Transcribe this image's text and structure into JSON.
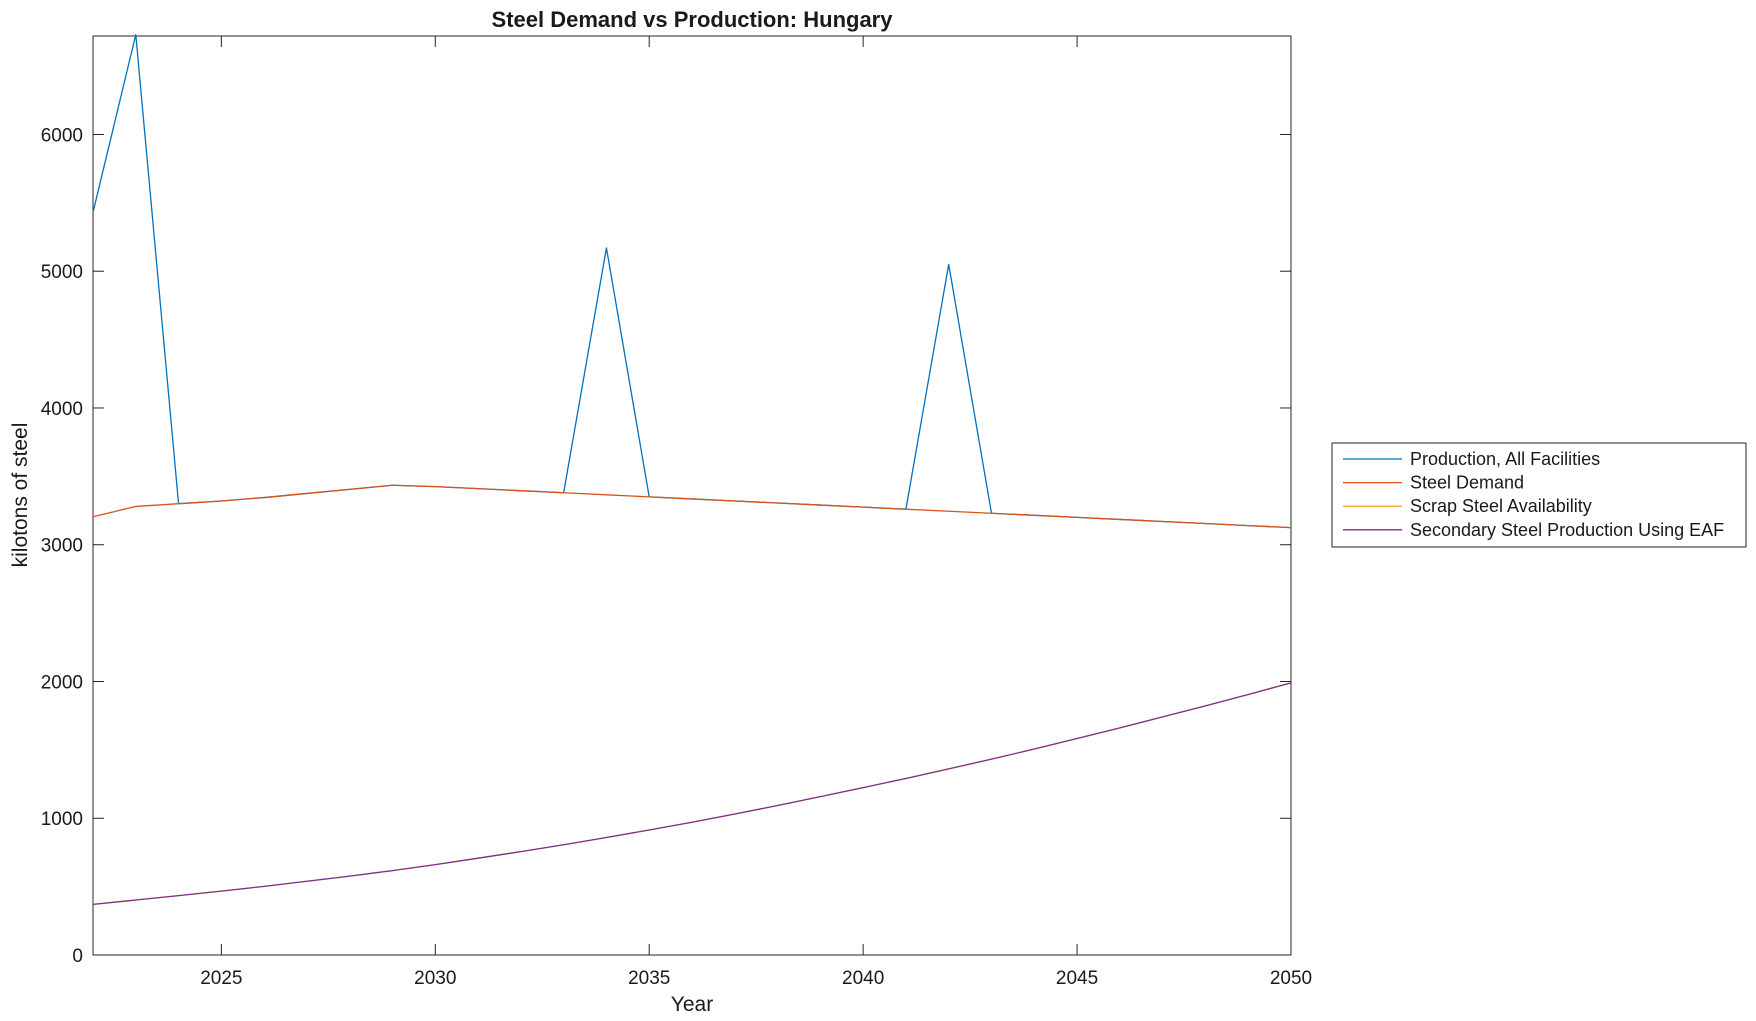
{
  "chart_data": {
    "type": "line",
    "title": "Steel Demand vs Production: Hungary",
    "xlabel": "Year",
    "ylabel": "kilotons of steel",
    "xlim": [
      2022,
      2050
    ],
    "ylim": [
      0,
      6720
    ],
    "xticks": [
      2025,
      2030,
      2035,
      2040,
      2045,
      2050
    ],
    "yticks": [
      0,
      1000,
      2000,
      3000,
      4000,
      5000,
      6000
    ],
    "grid": false,
    "legend_position": "outside-right",
    "x": [
      2022,
      2023,
      2024,
      2025,
      2026,
      2027,
      2028,
      2029,
      2030,
      2031,
      2032,
      2033,
      2034,
      2035,
      2036,
      2037,
      2038,
      2039,
      2040,
      2041,
      2042,
      2043,
      2044,
      2045,
      2046,
      2047,
      2048,
      2049,
      2050
    ],
    "series": [
      {
        "name": "Production, All Facilities",
        "color": "#0072BD",
        "values": [
          5430,
          6730,
          3300,
          3320,
          3345,
          3375,
          3405,
          3435,
          3425,
          3410,
          3395,
          3380,
          5170,
          3350,
          3335,
          3320,
          3305,
          3290,
          3275,
          3260,
          5050,
          3230,
          3215,
          3200,
          3185,
          3170,
          3155,
          3140,
          3125
        ]
      },
      {
        "name": "Steel Demand",
        "color": "#D95319",
        "values": [
          3205,
          3280,
          3300,
          3320,
          3345,
          3375,
          3405,
          3435,
          3425,
          3410,
          3395,
          3380,
          3365,
          3350,
          3335,
          3320,
          3305,
          3290,
          3275,
          3260,
          3245,
          3230,
          3215,
          3200,
          3185,
          3170,
          3155,
          3140,
          3125
        ]
      },
      {
        "name": "Scrap Steel Availability",
        "color": "#EDB120",
        "values": [
          370,
          402,
          434,
          467,
          502,
          539,
          577,
          617,
          661,
          708,
          756,
          806,
          859,
          914,
          971,
          1031,
          1093,
          1158,
          1224,
          1291,
          1361,
          1432,
          1506,
          1583,
          1661,
          1741,
          1822,
          1905,
          1990
        ]
      },
      {
        "name": "Secondary Steel Production Using EAF",
        "color": "#7E2F8E",
        "values": [
          370,
          402,
          434,
          467,
          502,
          539,
          577,
          617,
          661,
          708,
          756,
          806,
          859,
          914,
          971,
          1031,
          1093,
          1158,
          1224,
          1291,
          1361,
          1432,
          1506,
          1583,
          1661,
          1741,
          1822,
          1905,
          1990
        ]
      }
    ]
  }
}
